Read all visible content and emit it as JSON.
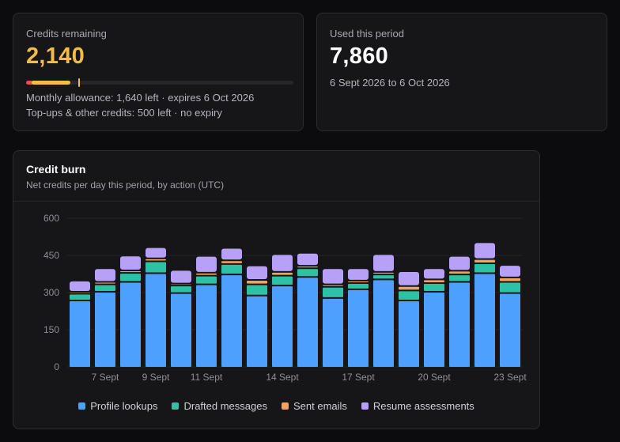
{
  "credits": {
    "label": "Credits remaining",
    "value": "2,140",
    "monthly_line": "Monthly allowance: 1,640 left · expires 6 Oct 2026",
    "topup_line": "Top-ups & other credits: 500 left · no expiry",
    "bar": {
      "monthly_remaining_fraction": 0.165,
      "topup_marker_fraction": 0.196
    }
  },
  "used": {
    "label": "Used this period",
    "value": "7,860",
    "range": "6 Sept 2026 to 6 Oct 2026"
  },
  "burn": {
    "title": "Credit burn",
    "subtitle": "Net credits per day this period, by action (UTC)"
  },
  "colors": {
    "accent": "#f2bb4a",
    "bar_red": "#e0524e",
    "profile": "#4ea0ff",
    "drafted": "#2dc2a5",
    "sent": "#f0a35a",
    "resume": "#b7a1f7"
  },
  "chart_data": {
    "type": "bar",
    "stacked": true,
    "ylim": [
      0,
      600
    ],
    "yticks": [
      "0",
      "150",
      "300",
      "450",
      "600"
    ],
    "tick_labels": [
      "7 Sept",
      "9 Sept",
      "11 Sept",
      "14 Sept",
      "17 Sept",
      "20 Sept",
      "23 Sept"
    ],
    "tick_label_indices": [
      1,
      3,
      5,
      8,
      11,
      14,
      17
    ],
    "categories": [
      "6 Sept",
      "7 Sept",
      "8 Sept",
      "9 Sept",
      "10 Sept",
      "11 Sept",
      "12 Sept",
      "13 Sept",
      "14 Sept",
      "15 Sept",
      "16 Sept",
      "17 Sept",
      "18 Sept",
      "19 Sept",
      "20 Sept",
      "21 Sept",
      "22 Sept",
      "23 Sept"
    ],
    "grid": true,
    "legend_position": "bottom",
    "series": [
      {
        "name": "Profile lookups",
        "color": "#4ea0ff",
        "values": [
          265,
          300,
          340,
          375,
          295,
          330,
          370,
          285,
          325,
          360,
          275,
          310,
          350,
          265,
          300,
          340,
          375,
          295
        ]
      },
      {
        "name": "Drafted messages",
        "color": "#2dc2a5",
        "values": [
          27,
          30,
          36,
          48,
          30,
          35,
          42,
          45,
          40,
          35,
          45,
          25,
          20,
          40,
          35,
          30,
          40,
          45
        ]
      },
      {
        "name": "Sent emails",
        "color": "#f0a35a",
        "values": [
          8,
          10,
          10,
          12,
          8,
          12,
          15,
          18,
          15,
          10,
          10,
          10,
          10,
          18,
          15,
          15,
          17,
          18
        ]
      },
      {
        "name": "Resume assessments",
        "color": "#b7a1f7",
        "values": [
          45,
          55,
          60,
          45,
          55,
          68,
          50,
          58,
          72,
          52,
          65,
          50,
          72,
          60,
          45,
          60,
          68,
          50
        ]
      }
    ]
  }
}
